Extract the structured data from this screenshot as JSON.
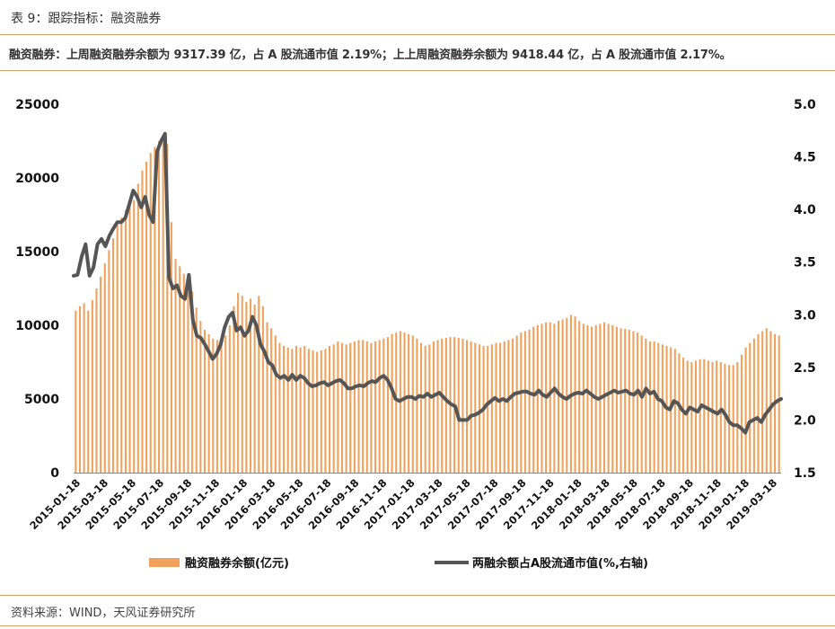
{
  "header": {
    "title": "表 9：跟踪指标：融资融券",
    "subtitle": "融资融券：上周融资融券余额为 9317.39 亿，占 A 股流通市值 2.19%；上上周融资融券余额为 9418.44 亿，占 A 股流通市值 2.17%。"
  },
  "footer": {
    "source": "资料来源：WIND，天风证券研究所"
  },
  "colors": {
    "bar": "#f0a25c",
    "line": "#555555",
    "rule": "#d9a06a"
  },
  "chart_data": {
    "type": "bar+line",
    "title": "",
    "legend": [
      "融资融券余额(亿元)",
      "两融余额占A股流通市值(%,右轴)"
    ],
    "legend_position": "bottom",
    "y_left": {
      "ylim": [
        0,
        25000
      ],
      "ticks": [
        "0",
        "5000",
        "10000",
        "15000",
        "20000",
        "25000"
      ]
    },
    "y_right": {
      "ylim": [
        1.5,
        5.0
      ],
      "ticks": [
        "1.5",
        "2.0",
        "2.5",
        "3.0",
        "3.5",
        "4.0",
        "4.5",
        "5.0"
      ]
    },
    "x_tick_labels": [
      "2015-01-18",
      "2015-03-18",
      "2015-05-18",
      "2015-07-18",
      "2015-09-18",
      "2015-11-18",
      "2016-01-18",
      "2016-03-18",
      "2016-05-18",
      "2016-07-18",
      "2016-09-18",
      "2016-11-18",
      "2017-01-18",
      "2017-03-18",
      "2017-05-18",
      "2017-07-18",
      "2017-09-18",
      "2017-11-18",
      "2018-01-18",
      "2018-03-18",
      "2018-05-18",
      "2018-07-18",
      "2018-09-18",
      "2018-11-18",
      "2019-01-18",
      "2019-03-18"
    ],
    "series": [
      {
        "name": "融资融券余额(亿元)",
        "type": "bar",
        "axis": "left",
        "values": [
          11000,
          11300,
          11500,
          11000,
          11700,
          12500,
          13300,
          14200,
          15100,
          15900,
          16800,
          17300,
          17800,
          18000,
          18500,
          19600,
          20500,
          21100,
          21700,
          22100,
          22500,
          22800,
          22300,
          17000,
          14500,
          14000,
          13500,
          13000,
          12300,
          11200,
          10300,
          9700,
          9400,
          9100,
          9000,
          8900,
          9300,
          10000,
          11300,
          12200,
          12000,
          11600,
          11800,
          11400,
          12000,
          11300,
          10200,
          9800,
          9300,
          8800,
          8600,
          8500,
          8400,
          8600,
          8500,
          8600,
          8400,
          8300,
          8200,
          8300,
          8400,
          8600,
          8700,
          8900,
          8800,
          8700,
          8800,
          8900,
          9000,
          9000,
          8900,
          8800,
          8900,
          9000,
          9100,
          9200,
          9400,
          9500,
          9600,
          9500,
          9400,
          9300,
          9100,
          8800,
          8600,
          8700,
          8900,
          9000,
          9100,
          9150,
          9200,
          9200,
          9150,
          9100,
          9000,
          8900,
          8800,
          8700,
          8600,
          8600,
          8700,
          8800,
          8800,
          8900,
          9000,
          9100,
          9300,
          9500,
          9600,
          9700,
          9900,
          10000,
          10100,
          10200,
          10200,
          10100,
          10300,
          10400,
          10500,
          10700,
          10600,
          10300,
          10100,
          10000,
          9900,
          10000,
          10100,
          10200,
          10100,
          10000,
          9900,
          9800,
          9750,
          9700,
          9600,
          9500,
          9300,
          9100,
          8900,
          8900,
          8800,
          8700,
          8600,
          8500,
          8400,
          8100,
          7800,
          7600,
          7500,
          7600,
          7700,
          7700,
          7600,
          7500,
          7600,
          7500,
          7400,
          7300,
          7300,
          7500,
          8000,
          8500,
          8800,
          9100,
          9400,
          9600,
          9800,
          9600,
          9400,
          9300
        ]
      },
      {
        "name": "两融余额占A股流通市值(%,右轴)",
        "type": "line",
        "axis": "right",
        "values": [
          3.37,
          3.38,
          3.55,
          3.67,
          3.37,
          3.45,
          3.67,
          3.72,
          3.65,
          3.75,
          3.82,
          3.88,
          3.88,
          3.92,
          4.05,
          4.18,
          4.12,
          4.02,
          4.12,
          3.95,
          3.88,
          4.55,
          4.65,
          4.72,
          3.35,
          3.25,
          3.28,
          3.18,
          3.15,
          3.38,
          2.95,
          2.8,
          2.78,
          2.72,
          2.65,
          2.58,
          2.63,
          2.72,
          2.88,
          2.98,
          3.02,
          2.85,
          2.88,
          2.8,
          2.85,
          2.98,
          2.9,
          2.72,
          2.65,
          2.55,
          2.52,
          2.43,
          2.4,
          2.42,
          2.38,
          2.43,
          2.38,
          2.42,
          2.4,
          2.35,
          2.32,
          2.33,
          2.35,
          2.36,
          2.33,
          2.35,
          2.37,
          2.38,
          2.35,
          2.3,
          2.3,
          2.32,
          2.33,
          2.32,
          2.35,
          2.37,
          2.36,
          2.4,
          2.42,
          2.38,
          2.3,
          2.2,
          2.18,
          2.2,
          2.22,
          2.22,
          2.2,
          2.23,
          2.22,
          2.25,
          2.22,
          2.24,
          2.26,
          2.22,
          2.18,
          2.15,
          2.13,
          2.0,
          2.0,
          2.0,
          2.04,
          2.05,
          2.07,
          2.1,
          2.15,
          2.18,
          2.21,
          2.18,
          2.2,
          2.18,
          2.22,
          2.25,
          2.26,
          2.27,
          2.27,
          2.25,
          2.24,
          2.28,
          2.24,
          2.22,
          2.26,
          2.3,
          2.25,
          2.22,
          2.2,
          2.23,
          2.25,
          2.26,
          2.25,
          2.28,
          2.25,
          2.22,
          2.2,
          2.22,
          2.24,
          2.26,
          2.28,
          2.26,
          2.27,
          2.28,
          2.25,
          2.24,
          2.28,
          2.22,
          2.3,
          2.25,
          2.27,
          2.2,
          2.18,
          2.12,
          2.1,
          2.18,
          2.16,
          2.1,
          2.06,
          2.12,
          2.1,
          2.08,
          2.14,
          2.12,
          2.1,
          2.08,
          2.06,
          2.1,
          2.05,
          1.98,
          1.95,
          1.95,
          1.92,
          1.88,
          1.98,
          2.0,
          2.02,
          1.98,
          2.05,
          2.1,
          2.15,
          2.18,
          2.2
        ]
      }
    ]
  }
}
